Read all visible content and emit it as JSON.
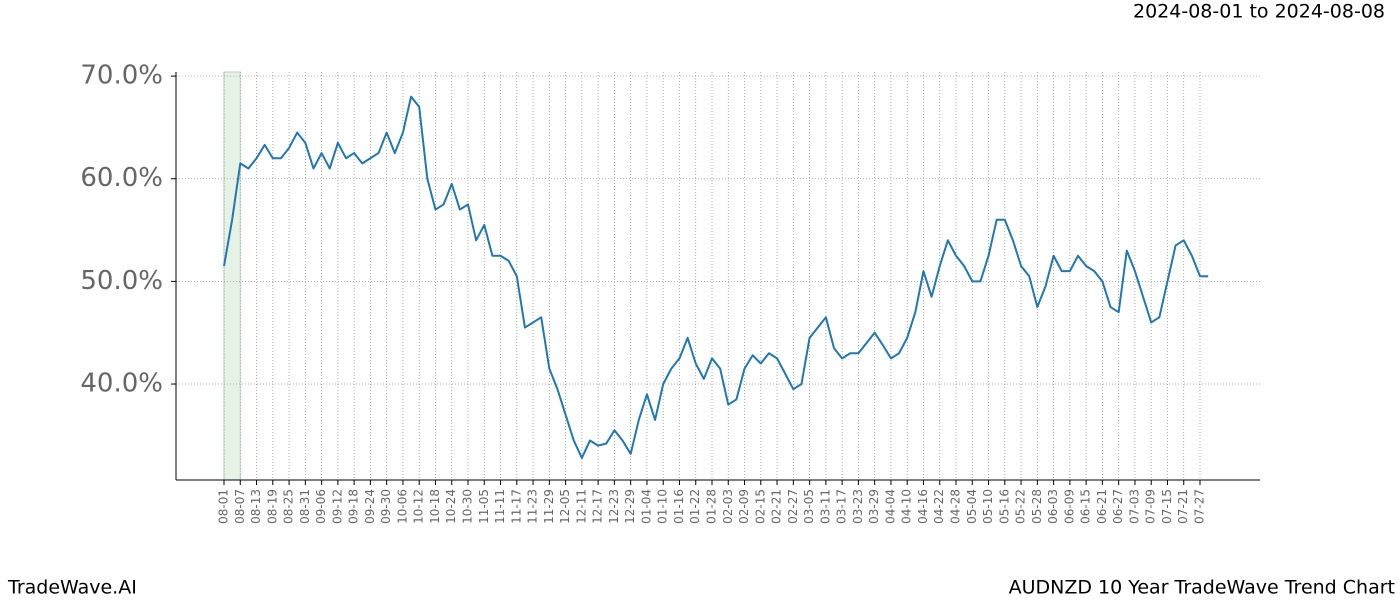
{
  "chart_data": {
    "type": "line",
    "date_range": "2024-08-01 to 2024-08-08",
    "brand": "TradeWave.AI",
    "title": "AUDNZD 10 Year TradeWave Trend Chart",
    "categories": [
      "08-01",
      null,
      "08-07",
      null,
      "08-13",
      null,
      "08-19",
      null,
      "08-25",
      null,
      "08-31",
      null,
      "09-06",
      null,
      "09-12",
      null,
      "09-18",
      null,
      "09-24",
      null,
      "09-30",
      null,
      "10-06",
      null,
      "10-12",
      null,
      "10-18",
      null,
      "10-24",
      null,
      "10-30",
      null,
      "11-05",
      null,
      "11-11",
      null,
      "11-17",
      null,
      "11-23",
      null,
      "11-29",
      null,
      "12-05",
      null,
      "12-11",
      null,
      "12-17",
      null,
      "12-23",
      null,
      "12-29",
      null,
      "01-04",
      null,
      "01-10",
      null,
      "01-16",
      null,
      "01-22",
      null,
      "01-28",
      null,
      "02-03",
      null,
      "02-09",
      null,
      "02-15",
      null,
      "02-21",
      null,
      "02-27",
      null,
      "03-05",
      null,
      "03-11",
      null,
      "03-17",
      null,
      "03-23",
      null,
      "03-29",
      null,
      "04-04",
      null,
      "04-10",
      null,
      "04-16",
      null,
      "04-22",
      null,
      "04-28",
      null,
      "05-04",
      null,
      "05-10",
      null,
      "05-16",
      null,
      "05-22",
      null,
      "05-28",
      null,
      "06-03",
      null,
      "06-09",
      null,
      "06-15",
      null,
      "06-21",
      null,
      "06-27",
      null,
      "07-03",
      null,
      "07-09",
      null,
      "07-15",
      null,
      "07-21",
      null,
      "07-27",
      null
    ],
    "series": [
      {
        "color": "#1f77b4",
        "values": [
          51.5,
          56,
          61.5,
          61,
          62,
          63.3,
          62,
          62,
          63,
          64.5,
          63.5,
          61,
          62.5,
          61,
          63.5,
          62,
          62.5,
          61.5,
          62,
          62.5,
          64.5,
          62.5,
          64.5,
          68,
          67,
          60,
          57,
          57.5,
          59.5,
          57,
          57.5,
          54,
          55.5,
          52.5,
          52.5,
          52,
          50.5,
          45.5,
          46,
          46.5,
          41.5,
          39.5,
          37,
          34.5,
          32.8,
          34.5,
          34,
          34.2,
          35.5,
          34.5,
          33.2,
          36.5,
          39,
          36.5,
          40,
          41.5,
          42.5,
          44.5,
          42,
          40.5,
          42.5,
          41.5,
          38,
          38.5,
          41.5,
          42.8,
          42,
          43,
          42.5,
          41,
          39.5,
          40,
          44.5,
          45.5,
          46.5,
          43.5,
          42.5,
          43,
          43,
          44,
          45,
          43.8,
          42.5,
          43,
          44.5,
          47,
          51,
          48.5,
          51.5,
          54,
          52.5,
          51.5,
          50,
          50,
          52.5,
          56,
          56,
          54,
          51.5,
          50.5,
          47.5,
          49.5,
          52.5,
          51,
          51,
          52.5,
          51.5,
          51,
          50,
          47.5,
          47,
          53,
          51,
          48.5,
          46,
          46.5,
          50,
          53.5,
          54,
          52.5,
          50.5,
          50.5
        ]
      }
    ],
    "highlight": {
      "from": "08-01",
      "to": "08-07",
      "color": "#e6f2e6"
    },
    "ylim": [
      30.65,
      70.4
    ],
    "yticks": [
      {
        "value": 40,
        "label": "40.0%"
      },
      {
        "value": 50,
        "label": "50.0%"
      },
      {
        "value": 60,
        "label": "60.0%"
      },
      {
        "value": 70,
        "label": "70.0%"
      }
    ],
    "grid": true
  }
}
